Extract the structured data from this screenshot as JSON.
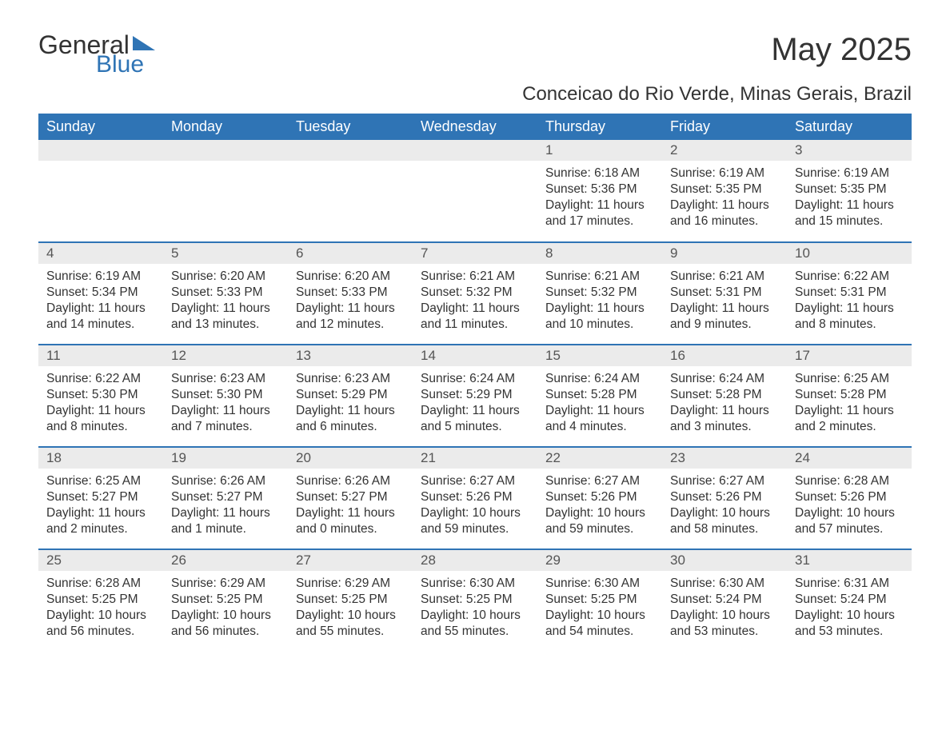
{
  "logo": {
    "text1": "General",
    "text2": "Blue"
  },
  "title": "May 2025",
  "subtitle": "Conceicao do Rio Verde, Minas Gerais, Brazil",
  "columns": [
    "Sunday",
    "Monday",
    "Tuesday",
    "Wednesday",
    "Thursday",
    "Friday",
    "Saturday"
  ],
  "colors": {
    "brand_blue": "#2f74b5",
    "header_bg": "#2f74b5",
    "header_text": "#ffffff",
    "daynum_bg": "#ebebeb",
    "text": "#333333"
  },
  "start_day_index": 4,
  "days": [
    {
      "n": 1,
      "sunrise": "6:18 AM",
      "sunset": "5:36 PM",
      "daylight": "11 hours and 17 minutes."
    },
    {
      "n": 2,
      "sunrise": "6:19 AM",
      "sunset": "5:35 PM",
      "daylight": "11 hours and 16 minutes."
    },
    {
      "n": 3,
      "sunrise": "6:19 AM",
      "sunset": "5:35 PM",
      "daylight": "11 hours and 15 minutes."
    },
    {
      "n": 4,
      "sunrise": "6:19 AM",
      "sunset": "5:34 PM",
      "daylight": "11 hours and 14 minutes."
    },
    {
      "n": 5,
      "sunrise": "6:20 AM",
      "sunset": "5:33 PM",
      "daylight": "11 hours and 13 minutes."
    },
    {
      "n": 6,
      "sunrise": "6:20 AM",
      "sunset": "5:33 PM",
      "daylight": "11 hours and 12 minutes."
    },
    {
      "n": 7,
      "sunrise": "6:21 AM",
      "sunset": "5:32 PM",
      "daylight": "11 hours and 11 minutes."
    },
    {
      "n": 8,
      "sunrise": "6:21 AM",
      "sunset": "5:32 PM",
      "daylight": "11 hours and 10 minutes."
    },
    {
      "n": 9,
      "sunrise": "6:21 AM",
      "sunset": "5:31 PM",
      "daylight": "11 hours and 9 minutes."
    },
    {
      "n": 10,
      "sunrise": "6:22 AM",
      "sunset": "5:31 PM",
      "daylight": "11 hours and 8 minutes."
    },
    {
      "n": 11,
      "sunrise": "6:22 AM",
      "sunset": "5:30 PM",
      "daylight": "11 hours and 8 minutes."
    },
    {
      "n": 12,
      "sunrise": "6:23 AM",
      "sunset": "5:30 PM",
      "daylight": "11 hours and 7 minutes."
    },
    {
      "n": 13,
      "sunrise": "6:23 AM",
      "sunset": "5:29 PM",
      "daylight": "11 hours and 6 minutes."
    },
    {
      "n": 14,
      "sunrise": "6:24 AM",
      "sunset": "5:29 PM",
      "daylight": "11 hours and 5 minutes."
    },
    {
      "n": 15,
      "sunrise": "6:24 AM",
      "sunset": "5:28 PM",
      "daylight": "11 hours and 4 minutes."
    },
    {
      "n": 16,
      "sunrise": "6:24 AM",
      "sunset": "5:28 PM",
      "daylight": "11 hours and 3 minutes."
    },
    {
      "n": 17,
      "sunrise": "6:25 AM",
      "sunset": "5:28 PM",
      "daylight": "11 hours and 2 minutes."
    },
    {
      "n": 18,
      "sunrise": "6:25 AM",
      "sunset": "5:27 PM",
      "daylight": "11 hours and 2 minutes."
    },
    {
      "n": 19,
      "sunrise": "6:26 AM",
      "sunset": "5:27 PM",
      "daylight": "11 hours and 1 minute."
    },
    {
      "n": 20,
      "sunrise": "6:26 AM",
      "sunset": "5:27 PM",
      "daylight": "11 hours and 0 minutes."
    },
    {
      "n": 21,
      "sunrise": "6:27 AM",
      "sunset": "5:26 PM",
      "daylight": "10 hours and 59 minutes."
    },
    {
      "n": 22,
      "sunrise": "6:27 AM",
      "sunset": "5:26 PM",
      "daylight": "10 hours and 59 minutes."
    },
    {
      "n": 23,
      "sunrise": "6:27 AM",
      "sunset": "5:26 PM",
      "daylight": "10 hours and 58 minutes."
    },
    {
      "n": 24,
      "sunrise": "6:28 AM",
      "sunset": "5:26 PM",
      "daylight": "10 hours and 57 minutes."
    },
    {
      "n": 25,
      "sunrise": "6:28 AM",
      "sunset": "5:25 PM",
      "daylight": "10 hours and 56 minutes."
    },
    {
      "n": 26,
      "sunrise": "6:29 AM",
      "sunset": "5:25 PM",
      "daylight": "10 hours and 56 minutes."
    },
    {
      "n": 27,
      "sunrise": "6:29 AM",
      "sunset": "5:25 PM",
      "daylight": "10 hours and 55 minutes."
    },
    {
      "n": 28,
      "sunrise": "6:30 AM",
      "sunset": "5:25 PM",
      "daylight": "10 hours and 55 minutes."
    },
    {
      "n": 29,
      "sunrise": "6:30 AM",
      "sunset": "5:25 PM",
      "daylight": "10 hours and 54 minutes."
    },
    {
      "n": 30,
      "sunrise": "6:30 AM",
      "sunset": "5:24 PM",
      "daylight": "10 hours and 53 minutes."
    },
    {
      "n": 31,
      "sunrise": "6:31 AM",
      "sunset": "5:24 PM",
      "daylight": "10 hours and 53 minutes."
    }
  ],
  "labels": {
    "sunrise_prefix": "Sunrise: ",
    "sunset_prefix": "Sunset: ",
    "daylight_prefix": "Daylight: "
  }
}
